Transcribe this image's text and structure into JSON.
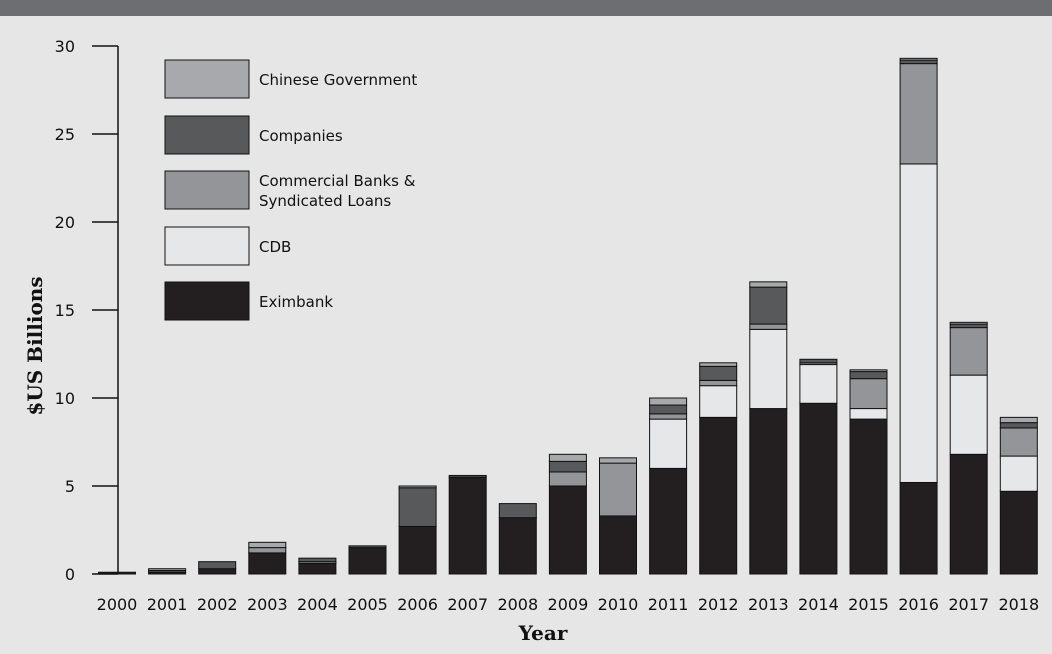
{
  "colors": {
    "background": "#e6e6e6",
    "top_bar": "#6d6e71",
    "eximbank": "#231f20",
    "cdb": "#e6e7e8",
    "commercial": "#939598",
    "companies": "#58595b",
    "government": "#a7a9ac"
  },
  "chart_data": {
    "type": "bar",
    "stacked": true,
    "categories": [
      "2000",
      "2001",
      "2002",
      "2003",
      "2004",
      "2005",
      "2006",
      "2007",
      "2008",
      "2009",
      "2010",
      "2011",
      "2012",
      "2013",
      "2014",
      "2015",
      "2016",
      "2017",
      "2018"
    ],
    "series": [
      {
        "name": "Eximbank",
        "key": "eximbank",
        "values": [
          0.1,
          0.1,
          0.3,
          1.2,
          0.6,
          1.5,
          2.7,
          5.5,
          3.2,
          5.0,
          3.3,
          6.0,
          8.9,
          9.4,
          9.7,
          8.8,
          5.2,
          6.8,
          4.7
        ]
      },
      {
        "name": "CDB",
        "key": "cdb",
        "values": [
          0.0,
          0.0,
          0.0,
          0.0,
          0.0,
          0.0,
          0.0,
          0.0,
          0.0,
          0.0,
          0.0,
          2.8,
          1.8,
          4.5,
          2.2,
          0.6,
          18.1,
          4.5,
          2.0
        ]
      },
      {
        "name": "Commercial Banks & Syndicated Loans",
        "key": "commercial",
        "values": [
          0.0,
          0.0,
          0.0,
          0.3,
          0.1,
          0.0,
          0.0,
          0.0,
          0.0,
          0.8,
          3.0,
          0.3,
          0.3,
          0.3,
          0.1,
          1.7,
          5.7,
          2.7,
          1.6
        ]
      },
      {
        "name": "Companies",
        "key": "companies",
        "values": [
          0.0,
          0.1,
          0.4,
          0.0,
          0.2,
          0.1,
          2.2,
          0.1,
          0.8,
          0.6,
          0.0,
          0.5,
          0.8,
          2.1,
          0.2,
          0.4,
          0.2,
          0.2,
          0.3
        ]
      },
      {
        "name": "Chinese Government",
        "key": "government",
        "values": [
          0.0,
          0.1,
          0.0,
          0.3,
          0.0,
          0.0,
          0.1,
          0.0,
          0.0,
          0.4,
          0.3,
          0.4,
          0.2,
          0.3,
          0.0,
          0.1,
          0.1,
          0.1,
          0.3
        ]
      }
    ],
    "legend_order": [
      "government",
      "companies",
      "commercial",
      "cdb",
      "eximbank"
    ],
    "legend_position": "top-left",
    "xlabel": "Year",
    "ylabel": "$US Billions",
    "ylim": [
      0,
      30
    ],
    "yticks": [
      0,
      5,
      10,
      15,
      20,
      25,
      30
    ],
    "grid": false
  }
}
